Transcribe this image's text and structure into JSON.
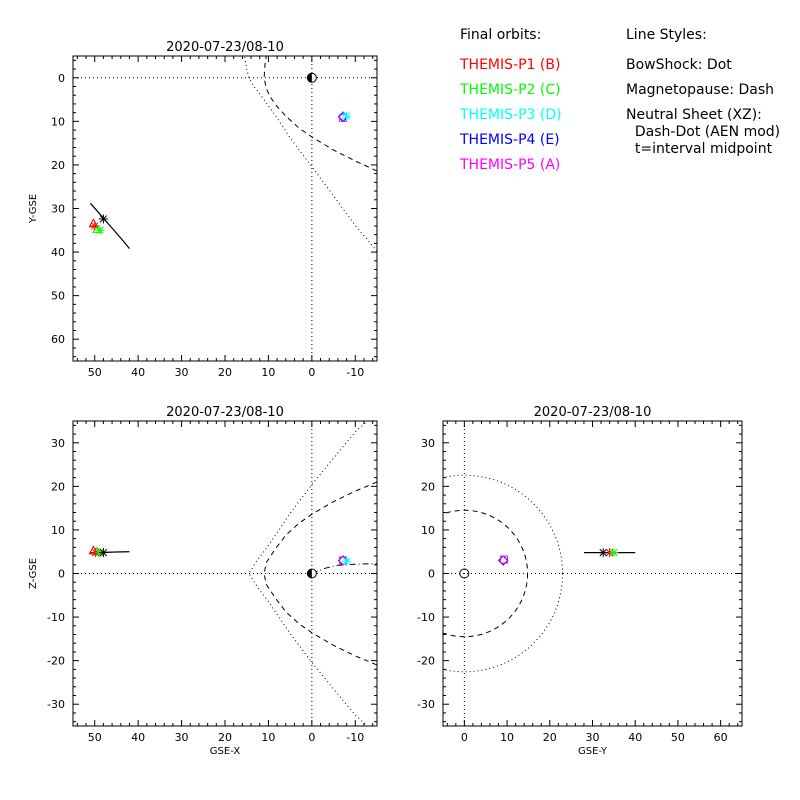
{
  "legend": {
    "orbits_title": "Final orbits:",
    "orbits": [
      {
        "label": "THEMIS-P1 (B)",
        "color": "#ff0000"
      },
      {
        "label": "THEMIS-P2 (C)",
        "color": "#00ff00"
      },
      {
        "label": "THEMIS-P3 (D)",
        "color": "#00ffff"
      },
      {
        "label": "THEMIS-P4 (E)",
        "color": "#0000ff"
      },
      {
        "label": "THEMIS-P5 (A)",
        "color": "#ff00ff"
      }
    ],
    "styles_title": "Line Styles:",
    "styles": [
      "BowShock: Dot",
      "Magnetopause: Dash",
      "Neutral Sheet (XZ):",
      "  Dash-Dot (AEN mod)",
      "  t=interval midpoint"
    ]
  },
  "chart_data": [
    {
      "type": "scatter",
      "title": "2020-07-23/08-10",
      "xlabel": "",
      "ylabel": "Y-GSE",
      "xlim": [
        55,
        -15
      ],
      "ylim": [
        65,
        -5
      ],
      "xticks": [
        50,
        40,
        30,
        20,
        10,
        0,
        -10
      ],
      "yticks": [
        0,
        10,
        20,
        30,
        40,
        50,
        60
      ],
      "grid": false,
      "axis_lines": true,
      "bow_shock": [
        [
          -15,
          39.8
        ],
        [
          -10,
          33.9
        ],
        [
          -5,
          27.1
        ],
        [
          0,
          20.4
        ],
        [
          5,
          13.8
        ],
        [
          8,
          9.2
        ],
        [
          10,
          6.4
        ],
        [
          12,
          3.7
        ],
        [
          13.5,
          1.8
        ],
        [
          14.5,
          0
        ],
        [
          15,
          -2
        ],
        [
          15.5,
          -5
        ]
      ],
      "magnetopause": [
        [
          -15,
          21.4
        ],
        [
          -10,
          19.1
        ],
        [
          -5,
          16.6
        ],
        [
          0,
          13.6
        ],
        [
          3,
          11.5
        ],
        [
          6,
          8.8
        ],
        [
          8,
          6.6
        ],
        [
          9.5,
          4.5
        ],
        [
          10.5,
          2.5
        ],
        [
          11,
          0
        ],
        [
          10.8,
          -3
        ],
        [
          10.5,
          -5
        ]
      ],
      "orbit_track": [
        [
          42,
          39.2
        ],
        [
          44,
          36.8
        ],
        [
          46,
          34.5
        ],
        [
          48,
          32.2
        ],
        [
          49.5,
          30.5
        ],
        [
          51,
          28.8
        ]
      ],
      "earth": [
        0,
        0
      ],
      "markers": [
        {
          "probe": "P1",
          "symbol": "triangle",
          "color": "#ff0000",
          "x": 50.3,
          "y": 33.5
        },
        {
          "probe": "P2",
          "symbol": "triangle",
          "color": "#00ff00",
          "x": 49.5,
          "y": 34.8
        },
        {
          "probe": "P3",
          "symbol": "diamond",
          "color": "#00ffff",
          "x": -7.2,
          "y": 8.8
        },
        {
          "probe": "P4",
          "symbol": "diamond",
          "color": "#0000ff",
          "x": -7.2,
          "y": 9.0
        },
        {
          "probe": "P5",
          "symbol": "square",
          "color": "#ff00ff",
          "x": -7.2,
          "y": 9.2
        },
        {
          "probe": "P1",
          "symbol": "asterisk",
          "color": "#ff0000",
          "x": 50.0,
          "y": 34.0
        },
        {
          "probe": "P2",
          "symbol": "asterisk",
          "color": "#00ff00",
          "x": 48.8,
          "y": 35.0
        },
        {
          "probe": "P3",
          "symbol": "asterisk",
          "color": "#00ffff",
          "x": -8.0,
          "y": 8.8
        },
        {
          "probe": "mid",
          "symbol": "asterisk",
          "color": "#000000",
          "x": 48.0,
          "y": 32.4
        }
      ]
    },
    {
      "type": "scatter",
      "title": "2020-07-23/08-10",
      "xlabel": "GSE-X",
      "ylabel": "Z-GSE",
      "xlim": [
        55,
        -15
      ],
      "ylim": [
        -35,
        35
      ],
      "xticks": [
        50,
        40,
        30,
        20,
        10,
        0,
        -10
      ],
      "yticks": [
        -30,
        -20,
        -10,
        0,
        10,
        20,
        30
      ],
      "grid": false,
      "axis_lines": true,
      "bow_shock": [
        [
          -15,
          37
        ],
        [
          -10,
          32.5
        ],
        [
          -5,
          26.5
        ],
        [
          0,
          20.4
        ],
        [
          5,
          13.8
        ],
        [
          10,
          6.4
        ],
        [
          12.5,
          3.2
        ],
        [
          14.5,
          0
        ],
        [
          12.5,
          -3.2
        ],
        [
          10,
          -6.4
        ],
        [
          5,
          -13.8
        ],
        [
          0,
          -20.4
        ],
        [
          -5,
          -26.5
        ],
        [
          -10,
          -32.5
        ],
        [
          -15,
          -37
        ]
      ],
      "magnetopause": [
        [
          -15,
          21
        ],
        [
          -10,
          18.9
        ],
        [
          -5,
          16.5
        ],
        [
          0,
          13.6
        ],
        [
          3,
          11.5
        ],
        [
          6,
          8.8
        ],
        [
          8.5,
          5.5
        ],
        [
          10.5,
          2.5
        ],
        [
          11,
          0
        ],
        [
          10.5,
          -2.5
        ],
        [
          8.5,
          -5.5
        ],
        [
          6,
          -8.8
        ],
        [
          3,
          -11.5
        ],
        [
          0,
          -13.6
        ],
        [
          -5,
          -16.5
        ],
        [
          -10,
          -18.9
        ],
        [
          -15,
          -21
        ]
      ],
      "neutral_sheet": [
        [
          0,
          0
        ],
        [
          -3,
          1.2
        ],
        [
          -6,
          1.9
        ],
        [
          -9,
          2.1
        ],
        [
          -12,
          2.2
        ],
        [
          -15,
          2.2
        ]
      ],
      "orbit_track": [
        [
          42,
          5.0
        ],
        [
          44,
          4.95
        ],
        [
          46,
          4.9
        ],
        [
          48,
          4.85
        ],
        [
          50,
          4.8
        ],
        [
          51,
          4.8
        ]
      ],
      "earth": [
        0,
        0
      ],
      "markers": [
        {
          "probe": "P1",
          "symbol": "triangle",
          "color": "#ff0000",
          "x": 50.3,
          "y": 5.2
        },
        {
          "probe": "P2",
          "symbol": "triangle",
          "color": "#00ff00",
          "x": 49.5,
          "y": 5.0
        },
        {
          "probe": "P3",
          "symbol": "diamond",
          "color": "#00ffff",
          "x": -7.2,
          "y": 3.0
        },
        {
          "probe": "P4",
          "symbol": "diamond",
          "color": "#0000ff",
          "x": -7.2,
          "y": 3.0
        },
        {
          "probe": "P5",
          "symbol": "square",
          "color": "#ff00ff",
          "x": -7.2,
          "y": 3.0
        },
        {
          "probe": "P1",
          "symbol": "asterisk",
          "color": "#ff0000",
          "x": 49.8,
          "y": 4.8
        },
        {
          "probe": "P2",
          "symbol": "asterisk",
          "color": "#00ff00",
          "x": 48.8,
          "y": 4.8
        },
        {
          "probe": "P3",
          "symbol": "asterisk",
          "color": "#00ffff",
          "x": -8.0,
          "y": 2.8
        },
        {
          "probe": "mid",
          "symbol": "asterisk",
          "color": "#000000",
          "x": 48.0,
          "y": 4.8
        }
      ]
    },
    {
      "type": "scatter",
      "title": "2020-07-23/08-10",
      "xlabel": "GSE-Y",
      "ylabel": "",
      "xlim": [
        -5,
        65
      ],
      "ylim": [
        -35,
        35
      ],
      "xticks": [
        0,
        10,
        20,
        30,
        40,
        50,
        60
      ],
      "yticks": [
        -30,
        -20,
        -10,
        0,
        10,
        20,
        30
      ],
      "grid": false,
      "axis_lines": true,
      "bow_shock_circle_radius": 23.0,
      "magnetopause_circle_radius": 14.8,
      "orbit_track": [
        [
          28,
          4.8
        ],
        [
          32,
          4.8
        ],
        [
          36,
          4.8
        ],
        [
          40,
          4.8
        ]
      ],
      "earth": [
        0,
        0
      ],
      "markers": [
        {
          "probe": "P3",
          "symbol": "diamond",
          "color": "#00ffff",
          "x": 9.1,
          "y": 3.0
        },
        {
          "probe": "P4",
          "symbol": "diamond",
          "color": "#0000ff",
          "x": 9.1,
          "y": 3.0
        },
        {
          "probe": "P5",
          "symbol": "square",
          "color": "#ff00ff",
          "x": 9.3,
          "y": 3.2
        },
        {
          "probe": "P1",
          "symbol": "asterisk",
          "color": "#ff0000",
          "x": 34.0,
          "y": 4.8
        },
        {
          "probe": "P2",
          "symbol": "asterisk",
          "color": "#00ff00",
          "x": 35.0,
          "y": 4.8
        },
        {
          "probe": "mid",
          "symbol": "asterisk",
          "color": "#000000",
          "x": 32.5,
          "y": 4.8
        }
      ]
    }
  ]
}
